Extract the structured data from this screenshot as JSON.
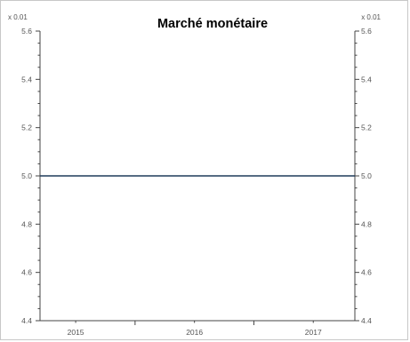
{
  "chart_data": {
    "type": "line",
    "title": "Marché monétaire",
    "xlabel": "",
    "ylabel": "",
    "y_scale_label_left": "x 0.01",
    "y_scale_label_right": "x 0.01",
    "x_ticks": [
      "2015",
      "2016",
      "2017"
    ],
    "x_tick_values": [
      2015,
      2016,
      2017
    ],
    "y_ticks": [
      "5.6",
      "5.4",
      "5.2",
      "5.0",
      "4.8",
      "4.6",
      "4.4"
    ],
    "y_tick_values": [
      5.6,
      5.4,
      5.2,
      5.0,
      4.8,
      4.6,
      4.4
    ],
    "xlim": [
      2014.7,
      2017.35
    ],
    "ylim": [
      4.4,
      5.6
    ],
    "grid": false,
    "legend": "none",
    "series": [
      {
        "color": "#1f3b5a",
        "x": [
          2014.7,
          2015,
          2016,
          2017,
          2017.35
        ],
        "y": [
          5.0,
          5.0,
          5.0,
          5.0,
          5.0
        ]
      }
    ]
  }
}
